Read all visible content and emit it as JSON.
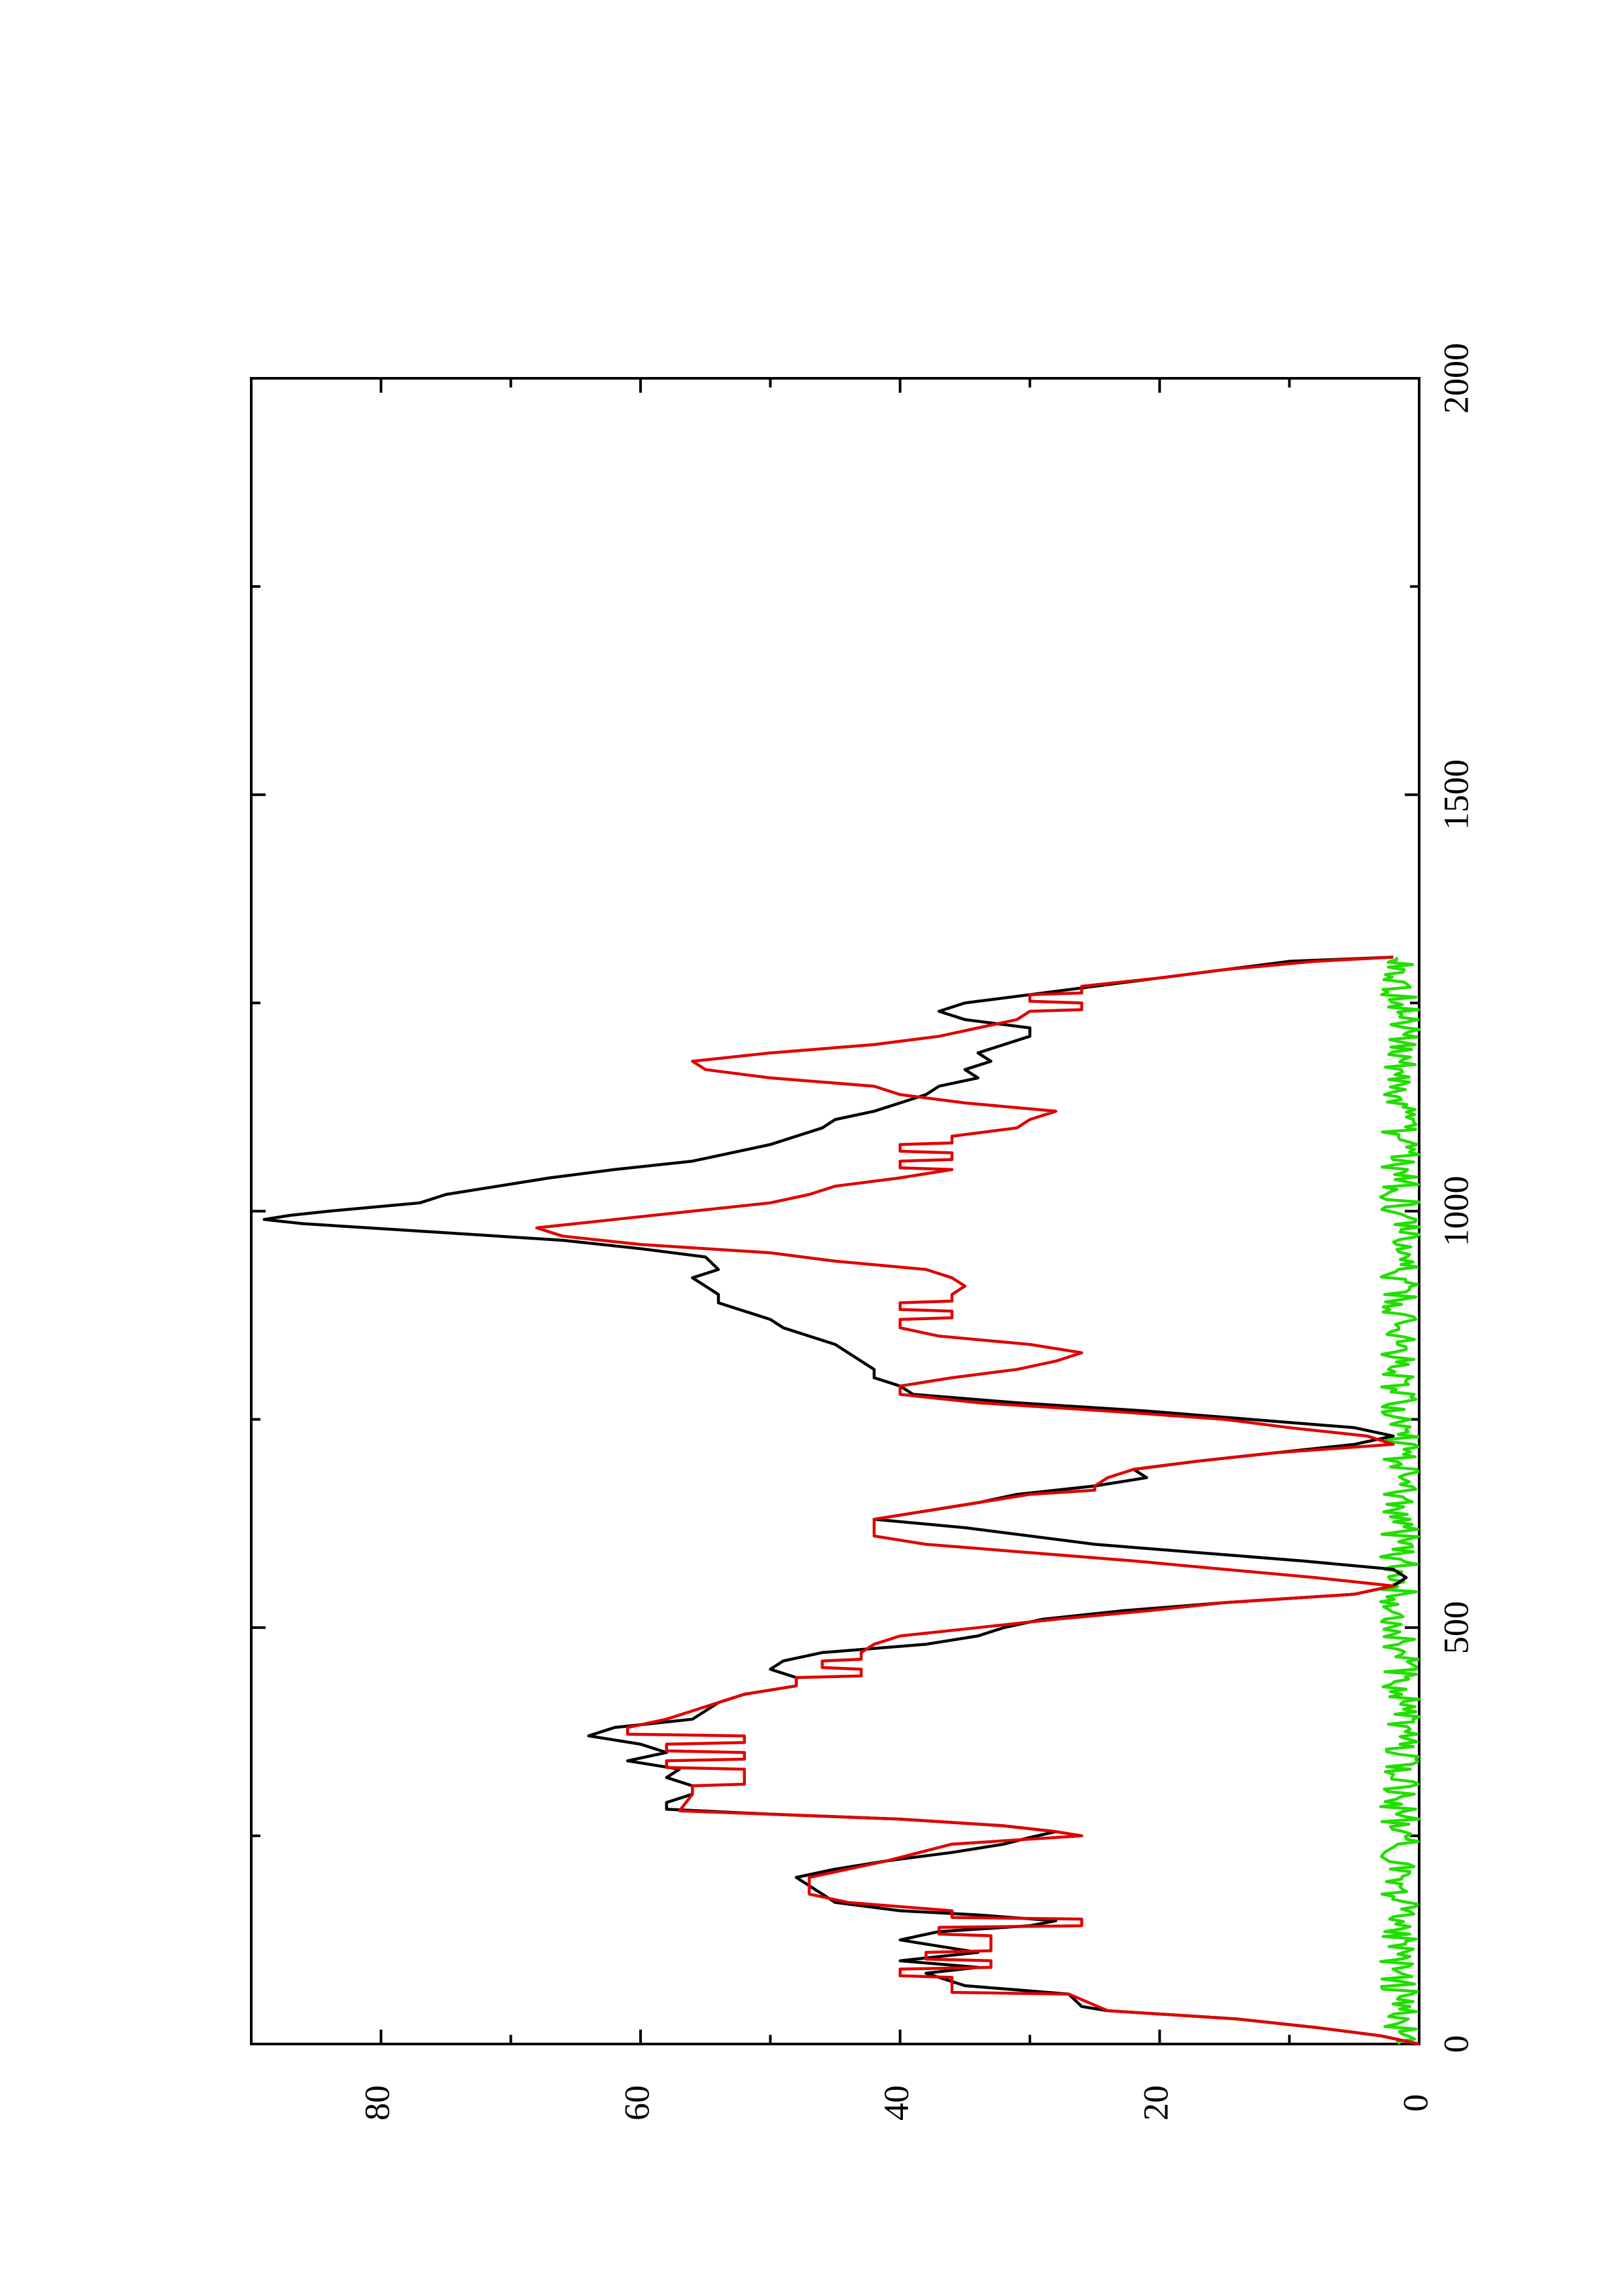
{
  "chart_data": {
    "type": "line",
    "orientation": "rotated 90 degrees counter-clockwise (x axis runs vertically, values increase upward; y axis runs horizontally, values increase leftward)",
    "xlim": [
      0,
      2000
    ],
    "ylim": [
      0,
      90
    ],
    "x_ticks": [
      0,
      500,
      1000,
      1500,
      2000
    ],
    "x_minor_ticks": [
      250,
      750,
      1250,
      1750
    ],
    "y_ticks": [
      0,
      20,
      40,
      60,
      80
    ],
    "y_minor_ticks": [
      10,
      30,
      50,
      70
    ],
    "grid": false,
    "legend": "none",
    "series": [
      {
        "color": "#000000",
        "points": [
          [
            0,
            0
          ],
          [
            10,
            3
          ],
          [
            20,
            8
          ],
          [
            30,
            14
          ],
          [
            40,
            24
          ],
          [
            45,
            26
          ],
          [
            60,
            27
          ],
          [
            65,
            31
          ],
          [
            70,
            35
          ],
          [
            80,
            37
          ],
          [
            85,
            38
          ],
          [
            92,
            34
          ],
          [
            100,
            40
          ],
          [
            105,
            37
          ],
          [
            110,
            34
          ],
          [
            115,
            36
          ],
          [
            120,
            38
          ],
          [
            125,
            40
          ],
          [
            135,
            37
          ],
          [
            142,
            30
          ],
          [
            148,
            28
          ],
          [
            155,
            34
          ],
          [
            160,
            40
          ],
          [
            170,
            45
          ],
          [
            180,
            46
          ],
          [
            200,
            48
          ],
          [
            210,
            45
          ],
          [
            220,
            41
          ],
          [
            230,
            36
          ],
          [
            240,
            32
          ],
          [
            248,
            30
          ],
          [
            255,
            28
          ],
          [
            262,
            32
          ],
          [
            270,
            40
          ],
          [
            276,
            50
          ],
          [
            282,
            58
          ],
          [
            290,
            58
          ],
          [
            300,
            56
          ],
          [
            310,
            56
          ],
          [
            320,
            58
          ],
          [
            330,
            57
          ],
          [
            340,
            61
          ],
          [
            350,
            58
          ],
          [
            360,
            60
          ],
          [
            370,
            64
          ],
          [
            380,
            62
          ],
          [
            390,
            56
          ],
          [
            400,
            55
          ],
          [
            410,
            54
          ],
          [
            420,
            52
          ],
          [
            430,
            48
          ],
          [
            440,
            48
          ],
          [
            450,
            50
          ],
          [
            460,
            49
          ],
          [
            470,
            46
          ],
          [
            480,
            38
          ],
          [
            490,
            34
          ],
          [
            500,
            32
          ],
          [
            510,
            29
          ],
          [
            520,
            23
          ],
          [
            530,
            15
          ],
          [
            540,
            5
          ],
          [
            550,
            2
          ],
          [
            560,
            1
          ],
          [
            570,
            2
          ],
          [
            580,
            9
          ],
          [
            590,
            17
          ],
          [
            600,
            25
          ],
          [
            620,
            35
          ],
          [
            630,
            42
          ],
          [
            640,
            38
          ],
          [
            650,
            34
          ],
          [
            660,
            31
          ],
          [
            670,
            25
          ],
          [
            680,
            21
          ],
          [
            690,
            22
          ],
          [
            700,
            17
          ],
          [
            710,
            11
          ],
          [
            720,
            5
          ],
          [
            730,
            2
          ],
          [
            740,
            5
          ],
          [
            750,
            13
          ],
          [
            760,
            21
          ],
          [
            770,
            31
          ],
          [
            780,
            39
          ],
          [
            790,
            40
          ],
          [
            800,
            42
          ],
          [
            810,
            42
          ],
          [
            820,
            43
          ],
          [
            830,
            44
          ],
          [
            840,
            45
          ],
          [
            860,
            49
          ],
          [
            870,
            50
          ],
          [
            890,
            54
          ],
          [
            900,
            54
          ],
          [
            910,
            55
          ],
          [
            920,
            56
          ],
          [
            930,
            54
          ],
          [
            945,
            55
          ],
          [
            955,
            60
          ],
          [
            965,
            66
          ],
          [
            975,
            76
          ],
          [
            985,
            86
          ],
          [
            990,
            89
          ],
          [
            995,
            87
          ],
          [
            1000,
            84
          ],
          [
            1010,
            77
          ],
          [
            1020,
            75
          ],
          [
            1030,
            71
          ],
          [
            1040,
            67
          ],
          [
            1050,
            62
          ],
          [
            1060,
            56
          ],
          [
            1070,
            53
          ],
          [
            1080,
            50
          ],
          [
            1090,
            48
          ],
          [
            1100,
            46
          ],
          [
            1110,
            45
          ],
          [
            1120,
            42
          ],
          [
            1130,
            40
          ],
          [
            1140,
            38
          ],
          [
            1150,
            37
          ],
          [
            1160,
            34
          ],
          [
            1170,
            35
          ],
          [
            1180,
            33
          ],
          [
            1190,
            34
          ],
          [
            1200,
            32
          ],
          [
            1210,
            30
          ],
          [
            1220,
            30
          ],
          [
            1230,
            35
          ],
          [
            1240,
            37
          ],
          [
            1250,
            35
          ],
          [
            1260,
            30
          ],
          [
            1270,
            25
          ],
          [
            1280,
            20
          ],
          [
            1290,
            15
          ],
          [
            1300,
            10
          ],
          [
            1305,
            2
          ]
        ]
      },
      {
        "color": "#e00000",
        "points": [
          [
            0,
            0
          ],
          [
            10,
            3
          ],
          [
            20,
            8
          ],
          [
            30,
            14
          ],
          [
            40,
            24
          ],
          [
            60,
            27
          ],
          [
            62,
            36
          ],
          [
            80,
            36
          ],
          [
            82,
            40
          ],
          [
            90,
            40
          ],
          [
            92,
            33
          ],
          [
            100,
            33
          ],
          [
            102,
            38
          ],
          [
            110,
            38
          ],
          [
            112,
            33
          ],
          [
            130,
            33
          ],
          [
            132,
            37
          ],
          [
            140,
            37
          ],
          [
            142,
            26
          ],
          [
            150,
            26
          ],
          [
            152,
            36
          ],
          [
            160,
            36
          ],
          [
            170,
            44
          ],
          [
            180,
            47
          ],
          [
            200,
            47
          ],
          [
            210,
            44
          ],
          [
            220,
            41
          ],
          [
            240,
            36
          ],
          [
            250,
            26
          ],
          [
            255,
            28
          ],
          [
            262,
            32
          ],
          [
            270,
            40
          ],
          [
            280,
            57
          ],
          [
            300,
            56
          ],
          [
            310,
            56
          ],
          [
            312,
            52
          ],
          [
            330,
            52
          ],
          [
            332,
            58
          ],
          [
            340,
            58
          ],
          [
            342,
            52
          ],
          [
            350,
            52
          ],
          [
            352,
            58
          ],
          [
            360,
            58
          ],
          [
            362,
            52
          ],
          [
            370,
            52
          ],
          [
            372,
            61
          ],
          [
            380,
            61
          ],
          [
            390,
            58
          ],
          [
            400,
            56
          ],
          [
            410,
            54
          ],
          [
            420,
            52
          ],
          [
            430,
            48
          ],
          [
            440,
            48
          ],
          [
            442,
            43
          ],
          [
            450,
            43
          ],
          [
            452,
            46
          ],
          [
            460,
            46
          ],
          [
            462,
            43
          ],
          [
            470,
            43
          ],
          [
            480,
            42
          ],
          [
            490,
            40
          ],
          [
            500,
            34
          ],
          [
            510,
            28
          ],
          [
            520,
            21
          ],
          [
            530,
            15
          ],
          [
            540,
            5
          ],
          [
            550,
            2
          ],
          [
            560,
            8
          ],
          [
            570,
            15
          ],
          [
            580,
            22
          ],
          [
            590,
            30
          ],
          [
            600,
            38
          ],
          [
            610,
            42
          ],
          [
            620,
            42
          ],
          [
            630,
            42
          ],
          [
            640,
            38
          ],
          [
            650,
            34
          ],
          [
            660,
            30
          ],
          [
            665,
            25
          ],
          [
            670,
            25
          ],
          [
            680,
            24
          ],
          [
            690,
            22
          ],
          [
            700,
            17
          ],
          [
            710,
            11
          ],
          [
            720,
            2
          ],
          [
            730,
            4
          ],
          [
            740,
            10
          ],
          [
            750,
            15
          ],
          [
            760,
            24
          ],
          [
            770,
            34
          ],
          [
            780,
            40
          ],
          [
            790,
            40
          ],
          [
            800,
            36
          ],
          [
            810,
            31
          ],
          [
            820,
            28
          ],
          [
            830,
            26
          ],
          [
            840,
            30
          ],
          [
            850,
            37
          ],
          [
            860,
            40
          ],
          [
            870,
            40
          ],
          [
            872,
            36
          ],
          [
            880,
            36
          ],
          [
            882,
            40
          ],
          [
            890,
            40
          ],
          [
            892,
            36
          ],
          [
            900,
            36
          ],
          [
            910,
            35
          ],
          [
            920,
            36
          ],
          [
            930,
            38
          ],
          [
            940,
            45
          ],
          [
            950,
            50
          ],
          [
            960,
            60
          ],
          [
            970,
            66
          ],
          [
            980,
            68
          ],
          [
            990,
            62
          ],
          [
            1000,
            56
          ],
          [
            1010,
            50
          ],
          [
            1020,
            47
          ],
          [
            1030,
            45
          ],
          [
            1040,
            40
          ],
          [
            1050,
            36
          ],
          [
            1052,
            40
          ],
          [
            1060,
            40
          ],
          [
            1062,
            36
          ],
          [
            1070,
            36
          ],
          [
            1072,
            40
          ],
          [
            1080,
            40
          ],
          [
            1082,
            36
          ],
          [
            1090,
            36
          ],
          [
            1100,
            31
          ],
          [
            1110,
            30
          ],
          [
            1120,
            28
          ],
          [
            1130,
            35
          ],
          [
            1140,
            40
          ],
          [
            1150,
            42
          ],
          [
            1160,
            50
          ],
          [
            1170,
            55
          ],
          [
            1180,
            56
          ],
          [
            1190,
            50
          ],
          [
            1200,
            42
          ],
          [
            1210,
            37
          ],
          [
            1220,
            34
          ],
          [
            1230,
            31
          ],
          [
            1240,
            30
          ],
          [
            1242,
            26
          ],
          [
            1250,
            26
          ],
          [
            1252,
            30
          ],
          [
            1260,
            30
          ],
          [
            1262,
            26
          ],
          [
            1270,
            26
          ],
          [
            1280,
            20
          ],
          [
            1290,
            15
          ],
          [
            1300,
            8
          ],
          [
            1305,
            2
          ]
        ]
      },
      {
        "color": "#22dd00",
        "points": []
      }
    ]
  }
}
